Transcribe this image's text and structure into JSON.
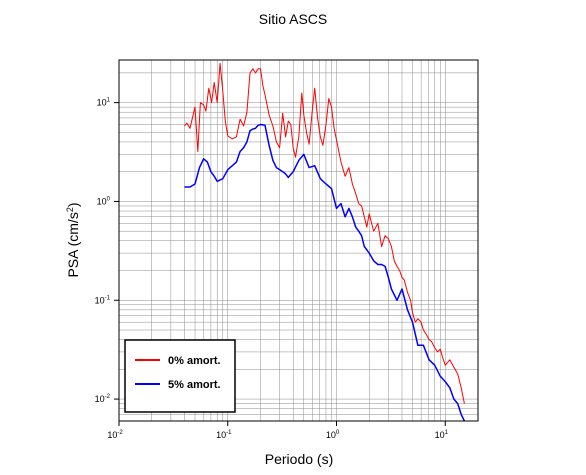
{
  "chart_data": {
    "type": "line",
    "title": "Sitio ASCS",
    "xlabel": "Periodo (s)",
    "ylabel": "PSA (cm/s²)",
    "x_scale": "log",
    "y_scale": "log",
    "xlim": [
      0.01,
      20
    ],
    "ylim": [
      0.006,
      27
    ],
    "grid": true,
    "legend_position": "bottom-left",
    "x_ticks": [
      {
        "value": 0.01,
        "base": "10",
        "exp": "-2"
      },
      {
        "value": 0.1,
        "base": "10",
        "exp": "-1"
      },
      {
        "value": 1,
        "base": "10",
        "exp": "0"
      },
      {
        "value": 10,
        "base": "10",
        "exp": "1"
      }
    ],
    "y_ticks": [
      {
        "value": 0.01,
        "base": "10",
        "exp": "-2"
      },
      {
        "value": 0.1,
        "base": "10",
        "exp": "-1"
      },
      {
        "value": 1,
        "base": "10",
        "exp": "0"
      },
      {
        "value": 10,
        "base": "10",
        "exp": "1"
      }
    ],
    "series": [
      {
        "name": "0% amort.",
        "color": "#ff0000",
        "x": [
          0.04,
          0.042,
          0.045,
          0.048,
          0.05,
          0.053,
          0.056,
          0.06,
          0.063,
          0.067,
          0.071,
          0.075,
          0.08,
          0.085,
          0.09,
          0.095,
          0.1,
          0.11,
          0.12,
          0.13,
          0.14,
          0.15,
          0.16,
          0.17,
          0.18,
          0.19,
          0.2,
          0.21,
          0.22,
          0.24,
          0.26,
          0.28,
          0.3,
          0.32,
          0.34,
          0.36,
          0.38,
          0.4,
          0.42,
          0.45,
          0.48,
          0.5,
          0.53,
          0.56,
          0.6,
          0.63,
          0.67,
          0.71,
          0.75,
          0.8,
          0.85,
          0.9,
          0.95,
          1.0,
          1.1,
          1.2,
          1.3,
          1.4,
          1.5,
          1.6,
          1.7,
          1.8,
          1.9,
          2.0,
          2.1,
          2.2,
          2.4,
          2.6,
          2.8,
          3.0,
          3.2,
          3.4,
          3.6,
          3.8,
          4.0,
          4.2,
          4.5,
          4.8,
          5.0,
          5.3,
          5.6,
          6.0,
          6.3,
          6.7,
          7.1,
          7.5,
          8.0,
          8.5,
          9.0,
          9.5,
          10.0,
          11.0,
          12.0,
          13.0,
          14.0,
          15.0
        ],
        "y": [
          5.8,
          6.2,
          5.5,
          7.5,
          9.0,
          3.2,
          10.0,
          9.5,
          8.2,
          14.0,
          10.0,
          16.0,
          10.0,
          25.0,
          13.0,
          6.5,
          4.6,
          4.3,
          4.5,
          6.8,
          5.8,
          8.0,
          20.0,
          22.0,
          20.0,
          22.0,
          22.0,
          15.0,
          12.0,
          7.5,
          5.8,
          4.0,
          3.5,
          7.8,
          4.5,
          6.5,
          6.0,
          3.5,
          2.8,
          4.5,
          12.5,
          7.5,
          5.0,
          3.8,
          8.5,
          14.0,
          7.0,
          4.5,
          3.7,
          6.0,
          11.0,
          9.0,
          5.5,
          4.2,
          2.5,
          1.8,
          2.2,
          1.5,
          1.2,
          0.95,
          0.9,
          0.7,
          0.55,
          0.75,
          0.6,
          0.5,
          0.6,
          0.35,
          0.45,
          0.42,
          0.35,
          0.25,
          0.22,
          0.2,
          0.17,
          0.16,
          0.12,
          0.1,
          0.075,
          0.06,
          0.065,
          0.06,
          0.05,
          0.045,
          0.04,
          0.038,
          0.033,
          0.03,
          0.032,
          0.026,
          0.022,
          0.025,
          0.021,
          0.018,
          0.013,
          0.009
        ]
      },
      {
        "name": "5% amort.",
        "color": "#0000ff",
        "x": [
          0.04,
          0.045,
          0.05,
          0.055,
          0.06,
          0.065,
          0.07,
          0.075,
          0.08,
          0.09,
          0.1,
          0.11,
          0.12,
          0.13,
          0.14,
          0.15,
          0.16,
          0.17,
          0.18,
          0.19,
          0.2,
          0.22,
          0.24,
          0.26,
          0.28,
          0.3,
          0.32,
          0.34,
          0.36,
          0.4,
          0.45,
          0.5,
          0.56,
          0.63,
          0.71,
          0.8,
          0.9,
          1.0,
          1.1,
          1.2,
          1.3,
          1.4,
          1.5,
          1.6,
          1.7,
          1.8,
          2.0,
          2.2,
          2.4,
          2.6,
          2.8,
          3.0,
          3.2,
          3.6,
          4.0,
          4.5,
          5.0,
          5.6,
          6.3,
          7.1,
          8.0,
          9.0,
          10.0,
          11.0,
          12.0,
          13.0,
          14.0,
          15.0
        ],
        "y": [
          1.4,
          1.4,
          1.5,
          2.2,
          2.7,
          2.5,
          2.0,
          1.8,
          1.6,
          1.7,
          2.1,
          2.3,
          2.5,
          3.2,
          3.5,
          4.0,
          5.2,
          5.4,
          5.5,
          5.9,
          6.0,
          5.9,
          3.7,
          2.6,
          2.2,
          2.1,
          2.0,
          1.9,
          1.75,
          2.0,
          2.6,
          3.0,
          2.2,
          2.3,
          1.7,
          1.5,
          1.35,
          0.85,
          0.95,
          0.7,
          0.85,
          0.7,
          0.55,
          0.5,
          0.45,
          0.35,
          0.3,
          0.25,
          0.23,
          0.23,
          0.22,
          0.17,
          0.13,
          0.1,
          0.13,
          0.08,
          0.06,
          0.035,
          0.035,
          0.025,
          0.022,
          0.017,
          0.015,
          0.013,
          0.01,
          0.009,
          0.007,
          0.006
        ]
      }
    ]
  }
}
